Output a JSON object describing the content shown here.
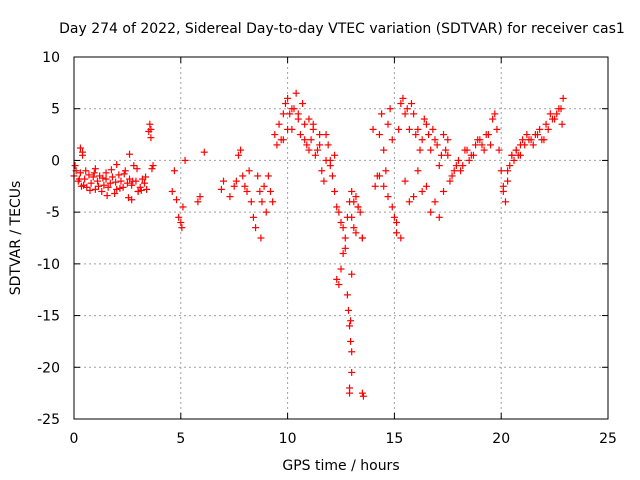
{
  "chart_data": {
    "type": "scatter",
    "title": "Day 274 of 2022, Sidereal Day-to-day VTEC variation (SDTVAR) for receiver cas1",
    "xlabel": "GPS time / hours",
    "ylabel": "SDTVAR / TECUs",
    "xlim": [
      0,
      25
    ],
    "ylim": [
      -25,
      10
    ],
    "xticks": [
      0,
      5,
      10,
      15,
      20,
      25
    ],
    "yticks": [
      -25,
      -20,
      -15,
      -10,
      -5,
      0,
      5,
      10
    ],
    "xtick_labels": [
      "0",
      "5",
      "10",
      "15",
      "20",
      "25"
    ],
    "ytick_labels": [
      "-25",
      "-20",
      "-15",
      "-10",
      "-5",
      "0",
      "5",
      "10"
    ],
    "grid": true,
    "marker": "+",
    "series": [
      {
        "name": "SDTVAR",
        "color": "#ff0000",
        "x": [
          0.0,
          0.1,
          0.2,
          0.3,
          0.35,
          0.4,
          0.5,
          0.6,
          0.7,
          0.8,
          0.9,
          1.0,
          1.1,
          1.2,
          1.3,
          1.4,
          1.5,
          1.6,
          1.7,
          1.8,
          1.9,
          2.0,
          2.1,
          2.2,
          2.3,
          2.4,
          2.5,
          2.6,
          2.7,
          2.8,
          2.9,
          3.0,
          3.1,
          3.2,
          3.3,
          3.4,
          3.5,
          3.55,
          3.6,
          3.65,
          0.05,
          0.25,
          0.45,
          0.55,
          0.75,
          0.95,
          1.15,
          1.35,
          1.55,
          1.75,
          1.95,
          2.15,
          2.35,
          2.55,
          2.75,
          2.95,
          3.15,
          3.35,
          0.3,
          0.4,
          1.0,
          1.5,
          2.0,
          2.6,
          2.7,
          3.0,
          3.6,
          3.7,
          4.6,
          4.8,
          4.9,
          5.0,
          5.05,
          5.1,
          4.7,
          5.2,
          5.8,
          5.9,
          6.1,
          6.9,
          7.0,
          7.3,
          7.5,
          7.6,
          7.7,
          7.8,
          7.9,
          8.0,
          8.1,
          8.2,
          8.3,
          8.4,
          8.5,
          8.6,
          8.7,
          8.75,
          8.8,
          8.9,
          9.0,
          9.1,
          9.2,
          9.3,
          9.4,
          9.5,
          9.6,
          9.7,
          9.8,
          9.9,
          10.0,
          10.1,
          10.2,
          10.3,
          10.4,
          10.5,
          10.6,
          10.7,
          10.8,
          10.9,
          11.0,
          11.1,
          11.2,
          11.3,
          11.4,
          11.5,
          11.6,
          11.7,
          11.8,
          11.9,
          12.0,
          12.1,
          12.2,
          9.8,
          10.0,
          10.2,
          10.5,
          10.8,
          11.0,
          11.2,
          11.5,
          11.8,
          12.0,
          12.2,
          12.3,
          12.4,
          12.5,
          12.6,
          12.7,
          12.8,
          12.9,
          13.0,
          13.1,
          13.2,
          13.3,
          12.3,
          12.4,
          12.5,
          12.6,
          12.7,
          12.8,
          12.85,
          12.9,
          12.95,
          13.0,
          13.0,
          12.9,
          12.9,
          12.95,
          13.0,
          13.5,
          13.55,
          13.5,
          13.0,
          13.1,
          13.2,
          13.3,
          13.4,
          13.5,
          14.0,
          14.1,
          14.2,
          14.3,
          14.4,
          14.5,
          14.6,
          14.7,
          14.8,
          14.9,
          15.0,
          15.1,
          15.2,
          15.3,
          15.4,
          15.5,
          15.6,
          15.7,
          15.8,
          15.9,
          16.0,
          16.1,
          16.2,
          16.3,
          16.4,
          16.5,
          16.6,
          16.7,
          16.8,
          16.9,
          17.0,
          17.1,
          17.2,
          17.3,
          17.4,
          17.5,
          14.3,
          14.5,
          14.7,
          14.9,
          15.1,
          15.3,
          15.5,
          15.7,
          15.9,
          16.1,
          16.3,
          16.5,
          16.7,
          16.9,
          17.1,
          17.3,
          17.5,
          17.7,
          17.9,
          18.1,
          18.3,
          18.5,
          18.7,
          18.9,
          19.1,
          19.3,
          19.5,
          19.7,
          19.9,
          17.6,
          17.8,
          18.0,
          18.2,
          18.4,
          18.6,
          18.8,
          19.0,
          19.2,
          19.4,
          19.6,
          19.8,
          20.0,
          20.1,
          20.2,
          20.3,
          20.4,
          20.5,
          20.6,
          20.7,
          20.8,
          20.9,
          21.0,
          21.2,
          21.4,
          21.6,
          21.8,
          22.0,
          22.2,
          22.4,
          22.6,
          22.8,
          22.9,
          20.1,
          20.3,
          20.5,
          20.7,
          20.9,
          21.1,
          21.3,
          21.5,
          21.7,
          21.9,
          22.1,
          22.3,
          22.5,
          22.7,
          22.85
        ],
        "y": [
          -1.5,
          -1.0,
          -2.0,
          -1.2,
          -2.5,
          0.8,
          -1.8,
          -2.6,
          -1.4,
          -2.2,
          -1.6,
          -2.8,
          -2.0,
          -1.5,
          -3.0,
          -2.4,
          -1.8,
          -2.6,
          -2.2,
          -1.6,
          -3.2,
          -2.8,
          -1.4,
          -2.0,
          -2.6,
          -1.0,
          -2.2,
          -1.8,
          -2.4,
          -0.5,
          -2.0,
          -3.0,
          -2.6,
          -1.8,
          -2.2,
          -2.8,
          2.8,
          3.5,
          2.2,
          -0.8,
          -0.5,
          -1.8,
          -2.4,
          -1.0,
          -2.9,
          -1.2,
          -2.5,
          -1.7,
          -3.4,
          -0.9,
          -2.1,
          -2.7,
          -1.3,
          -3.6,
          -2.0,
          -0.8,
          -2.9,
          -1.6,
          1.2,
          0.5,
          -0.8,
          -1.2,
          -0.4,
          0.6,
          -3.8,
          -3.0,
          3.0,
          -0.5,
          -3.0,
          -3.8,
          -5.5,
          -6.0,
          -6.5,
          -4.5,
          -1.0,
          0.0,
          -4.0,
          -3.5,
          0.8,
          -2.8,
          -2.0,
          -3.5,
          -2.5,
          -2.0,
          0.5,
          1.0,
          -1.5,
          -2.5,
          -3.0,
          -1.0,
          -4.0,
          -5.5,
          -6.5,
          -1.5,
          -3.0,
          -7.5,
          -4.0,
          -2.5,
          -5.0,
          -1.5,
          -3.0,
          -4.0,
          2.5,
          1.5,
          3.5,
          2.0,
          4.5,
          5.5,
          6.0,
          4.5,
          3.0,
          5.0,
          6.5,
          4.0,
          2.5,
          5.5,
          3.5,
          1.5,
          4.0,
          2.0,
          3.5,
          0.5,
          1.0,
          2.5,
          -1.0,
          -2.0,
          0.0,
          1.5,
          -0.5,
          -1.5,
          0.5,
          2.0,
          3.0,
          5.0,
          4.5,
          2.0,
          1.0,
          3.0,
          1.5,
          2.5,
          0.0,
          -3.0,
          -4.5,
          -5.0,
          -6.0,
          -6.5,
          -7.5,
          -5.5,
          -4.0,
          -5.5,
          -6.5,
          -7.0,
          -4.5,
          -11.5,
          -12.0,
          -10.5,
          -9.0,
          -8.5,
          -13.0,
          -14.5,
          -16.0,
          -17.5,
          -18.5,
          -20.5,
          -22.5,
          -22.0,
          -15.5,
          -11.0,
          -22.5,
          -22.8,
          -7.5,
          -3.0,
          -4.0,
          -3.5,
          -4.5,
          -5.0,
          -7.5,
          3.0,
          -2.5,
          -1.5,
          2.5,
          4.5,
          1.0,
          -1.0,
          3.5,
          5.0,
          2.0,
          -5.5,
          -7.0,
          3.0,
          5.5,
          6.0,
          4.5,
          5.0,
          3.0,
          5.5,
          4.5,
          2.5,
          3.0,
          1.0,
          2.0,
          4.0,
          3.5,
          2.5,
          1.0,
          3.0,
          2.0,
          1.5,
          -0.5,
          0.5,
          2.5,
          1.0,
          2.0,
          -1.5,
          -2.5,
          -3.5,
          -4.5,
          -6.0,
          -7.5,
          -2.0,
          -4.0,
          -3.5,
          -1.0,
          -3.0,
          -2.5,
          -5.0,
          -4.0,
          -5.5,
          -3.0,
          0.5,
          -1.5,
          -0.5,
          -1.0,
          1.0,
          0.0,
          0.5,
          2.0,
          1.5,
          2.5,
          1.5,
          4.5,
          1.0,
          -2.0,
          -1.0,
          0.0,
          -0.5,
          1.0,
          0.5,
          1.5,
          2.0,
          1.0,
          2.5,
          4.0,
          3.0,
          -1.0,
          -2.5,
          -4.0,
          -1.0,
          -0.5,
          0.5,
          0.0,
          1.0,
          0.5,
          1.5,
          2.0,
          2.5,
          2.0,
          2.5,
          3.0,
          2.0,
          3.0,
          4.0,
          4.5,
          5.0,
          6.0,
          -3.0,
          -2.0,
          0.5,
          1.0,
          0.5,
          1.5,
          2.0,
          1.5,
          2.5,
          2.0,
          3.5,
          4.5,
          4.0,
          5.0,
          3.5
        ]
      }
    ]
  }
}
